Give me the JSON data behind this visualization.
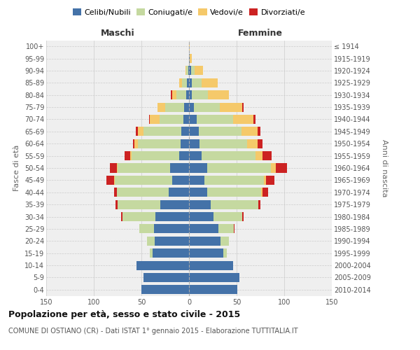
{
  "age_groups": [
    "0-4",
    "5-9",
    "10-14",
    "15-19",
    "20-24",
    "25-29",
    "30-34",
    "35-39",
    "40-44",
    "45-49",
    "50-54",
    "55-59",
    "60-64",
    "65-69",
    "70-74",
    "75-79",
    "80-84",
    "85-89",
    "90-94",
    "95-99",
    "100+"
  ],
  "birth_years": [
    "2010-2014",
    "2005-2009",
    "2000-2004",
    "1995-1999",
    "1990-1994",
    "1985-1989",
    "1980-1984",
    "1975-1979",
    "1970-1974",
    "1965-1969",
    "1960-1964",
    "1955-1959",
    "1950-1954",
    "1945-1949",
    "1940-1944",
    "1935-1939",
    "1930-1934",
    "1925-1929",
    "1920-1924",
    "1915-1919",
    "≤ 1914"
  ],
  "maschi": {
    "celibe": [
      50,
      48,
      55,
      38,
      36,
      37,
      35,
      30,
      21,
      18,
      20,
      10,
      9,
      8,
      6,
      5,
      3,
      2,
      1,
      0,
      0
    ],
    "coniugato": [
      0,
      0,
      0,
      3,
      8,
      15,
      35,
      45,
      55,
      60,
      55,
      50,
      45,
      40,
      25,
      20,
      10,
      5,
      2,
      0,
      0
    ],
    "vedovo": [
      0,
      0,
      0,
      0,
      0,
      0,
      0,
      0,
      0,
      1,
      1,
      2,
      3,
      6,
      10,
      8,
      5,
      3,
      1,
      0,
      0
    ],
    "divorziato": [
      0,
      0,
      0,
      0,
      0,
      0,
      1,
      2,
      3,
      8,
      7,
      6,
      2,
      2,
      1,
      0,
      1,
      0,
      0,
      0,
      0
    ]
  },
  "femmine": {
    "nubile": [
      51,
      53,
      46,
      36,
      33,
      31,
      26,
      23,
      19,
      16,
      19,
      13,
      11,
      10,
      8,
      5,
      3,
      3,
      2,
      1,
      0
    ],
    "coniugata": [
      0,
      0,
      0,
      4,
      9,
      16,
      30,
      50,
      57,
      63,
      67,
      57,
      50,
      45,
      38,
      27,
      17,
      10,
      4,
      0,
      0
    ],
    "vedova": [
      0,
      0,
      0,
      0,
      0,
      0,
      0,
      0,
      1,
      2,
      5,
      7,
      11,
      17,
      22,
      24,
      22,
      17,
      9,
      2,
      1
    ],
    "divorziata": [
      0,
      0,
      0,
      0,
      0,
      1,
      1,
      2,
      6,
      9,
      12,
      10,
      5,
      3,
      2,
      1,
      0,
      0,
      0,
      0,
      0
    ]
  },
  "colors": {
    "celibe": "#4472a8",
    "coniugato": "#c5d9a0",
    "vedovo": "#f5c96a",
    "divorziato": "#cc2222"
  },
  "xlim": 150,
  "xticks": [
    -150,
    -100,
    -50,
    0,
    50,
    100,
    150
  ],
  "title": "Popolazione per età, sesso e stato civile - 2015",
  "subtitle": "COMUNE DI OSTIANO (CR) - Dati ISTAT 1° gennaio 2015 - Elaborazione TUTTITALIA.IT",
  "ylabel_left": "Fasce di età",
  "ylabel_right": "Anni di nascita",
  "xlabel_maschi": "Maschi",
  "xlabel_femmine": "Femmine",
  "legend_labels": [
    "Celibi/Nubili",
    "Coniugati/e",
    "Vedovi/e",
    "Divorziati/e"
  ],
  "bg_color": "#ffffff",
  "plot_bg_color": "#efefef",
  "bar_height": 0.75,
  "title_fontsize": 9,
  "subtitle_fontsize": 7,
  "tick_fontsize": 7,
  "legend_fontsize": 8,
  "label_fontsize": 8,
  "header_fontsize": 9
}
